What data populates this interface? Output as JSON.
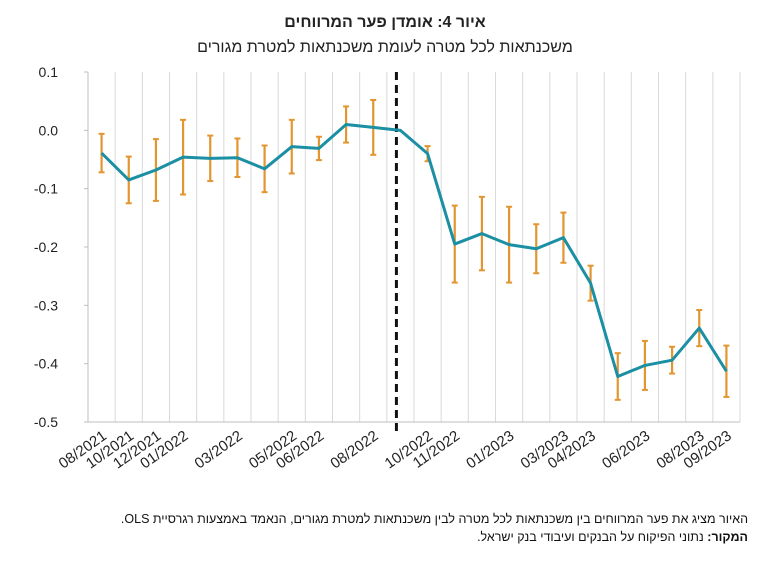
{
  "chart_data": {
    "type": "line",
    "title": "איור 4: אומדן פער המרווחים",
    "subtitle": "משכנתאות לכל מטרה לעומת משכנתאות למטרת מגורים",
    "categories": [
      "08/2021",
      "10/2021",
      "12/2021",
      "01/2022",
      null,
      "03/2022",
      null,
      "05/2022",
      "06/2022",
      null,
      "08/2022",
      null,
      "10/2022",
      "11/2022",
      null,
      "01/2023",
      null,
      "03/2023",
      "04/2023",
      null,
      "06/2023",
      null,
      "08/2023",
      "09/2023"
    ],
    "series": [
      {
        "name": "פער המרווחים",
        "color": "#1b8fa3",
        "error_color": "#e39530",
        "values": [
          -0.039,
          -0.085,
          -0.068,
          -0.046,
          -0.048,
          -0.047,
          -0.066,
          -0.028,
          -0.031,
          0.01,
          0.005,
          0,
          -0.04,
          -0.195,
          -0.177,
          -0.196,
          -0.203,
          -0.184,
          -0.262,
          -0.422,
          -0.403,
          -0.394,
          -0.339,
          -0.413
        ],
        "errors": [
          0.033,
          0.04,
          0.053,
          0.064,
          0.039,
          0.033,
          0.04,
          0.046,
          0.02,
          0.031,
          0.047,
          0,
          0.013,
          0.066,
          0.063,
          0.065,
          0.042,
          0.043,
          0.03,
          0.04,
          0.042,
          0.023,
          0.031,
          0.044
        ]
      }
    ],
    "ylim": [
      -0.5,
      0.1
    ],
    "yticks": [
      {
        "value": 0.1,
        "label": "0.1"
      },
      {
        "value": 0,
        "label": "0.0"
      },
      {
        "value": -0.1,
        "label": "-0.1"
      },
      {
        "value": -0.2,
        "label": "-0.2"
      },
      {
        "value": -0.3,
        "label": "-0.3"
      },
      {
        "value": -0.4,
        "label": "-0.4"
      },
      {
        "value": -0.5,
        "label": "-0.5"
      }
    ],
    "vertical_grid": true,
    "dashed_marker_index": 11
  },
  "notes": {
    "description": "האיור מציג את פער המרווחים בין משכנתאות לכל מטרה לבין משכנתאות למטרת מגורים, הנאמד באמצעות רגרסיית OLS.",
    "source_label": "המקור:",
    "source": "נתוני הפיקוח על הבנקים ועיבודי בנק ישראל."
  }
}
